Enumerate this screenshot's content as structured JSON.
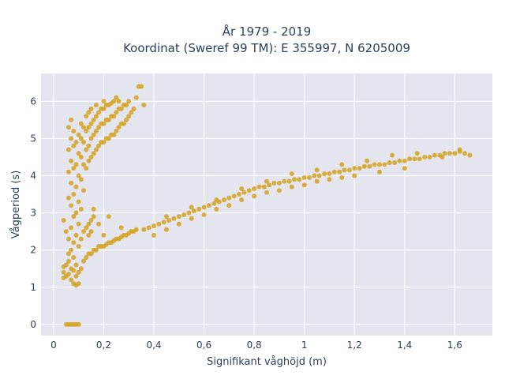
{
  "chart_data": {
    "type": "scatter",
    "title": [
      "År 1979 - 2019",
      "Koordinat (Sweref 99 TM): E 355997, N 6205009"
    ],
    "xlabel": "Signifikant våghöjd (m)",
    "ylabel": "Vågperiod (s)",
    "xlim": [
      -0.05,
      1.75
    ],
    "ylim": [
      -0.3,
      6.75
    ],
    "x_ticks": [
      0,
      0.2,
      0.4,
      0.6,
      0.8,
      1,
      1.2,
      1.4,
      1.6
    ],
    "x_tick_labels": [
      "0",
      "0,2",
      "0,4",
      "0,6",
      "0,8",
      "1",
      "1,2",
      "1,4",
      "1,6"
    ],
    "y_ticks": [
      0,
      1,
      2,
      3,
      4,
      5,
      6
    ],
    "y_tick_labels": [
      "0",
      "1",
      "2",
      "3",
      "4",
      "5",
      "6"
    ],
    "grid": true,
    "marker_color": "#d4a220",
    "plot_background": "#e5e5ef",
    "series": [
      {
        "points": [
          [
            0.05,
            0.0
          ],
          [
            0.06,
            0.0
          ],
          [
            0.07,
            0.0
          ],
          [
            0.08,
            0.0
          ],
          [
            0.09,
            0.0
          ],
          [
            0.1,
            0.0
          ],
          [
            0.04,
            1.25
          ],
          [
            0.04,
            1.4
          ],
          [
            0.04,
            1.55
          ],
          [
            0.05,
            1.3
          ],
          [
            0.05,
            1.6
          ],
          [
            0.06,
            1.35
          ],
          [
            0.06,
            1.7
          ],
          [
            0.07,
            1.2
          ],
          [
            0.07,
            1.5
          ],
          [
            0.08,
            1.1
          ],
          [
            0.08,
            1.45
          ],
          [
            0.09,
            1.05
          ],
          [
            0.09,
            1.3
          ],
          [
            0.1,
            1.1
          ],
          [
            0.04,
            2.8
          ],
          [
            0.05,
            2.5
          ],
          [
            0.06,
            1.9
          ],
          [
            0.06,
            2.3
          ],
          [
            0.06,
            3.4
          ],
          [
            0.06,
            4.1
          ],
          [
            0.06,
            4.7
          ],
          [
            0.06,
            5.3
          ],
          [
            0.07,
            2.0
          ],
          [
            0.07,
            2.6
          ],
          [
            0.07,
            3.2
          ],
          [
            0.07,
            3.8
          ],
          [
            0.07,
            4.4
          ],
          [
            0.07,
            5.0
          ],
          [
            0.07,
            5.5
          ],
          [
            0.08,
            1.8
          ],
          [
            0.08,
            2.2
          ],
          [
            0.08,
            2.9
          ],
          [
            0.08,
            3.5
          ],
          [
            0.08,
            4.2
          ],
          [
            0.08,
            4.8
          ],
          [
            0.08,
            5.2
          ],
          [
            0.09,
            1.6
          ],
          [
            0.09,
            2.4
          ],
          [
            0.09,
            3.0
          ],
          [
            0.09,
            3.7
          ],
          [
            0.09,
            4.3
          ],
          [
            0.09,
            4.9
          ],
          [
            0.1,
            1.4
          ],
          [
            0.1,
            2.1
          ],
          [
            0.1,
            2.7
          ],
          [
            0.1,
            3.3
          ],
          [
            0.1,
            4.0
          ],
          [
            0.1,
            4.6
          ],
          [
            0.1,
            5.1
          ],
          [
            0.11,
            1.5
          ],
          [
            0.11,
            2.3
          ],
          [
            0.11,
            3.1
          ],
          [
            0.11,
            3.9
          ],
          [
            0.11,
            4.5
          ],
          [
            0.11,
            5.0
          ],
          [
            0.11,
            5.4
          ],
          [
            0.12,
            1.7
          ],
          [
            0.12,
            2.5
          ],
          [
            0.12,
            3.6
          ],
          [
            0.12,
            4.3
          ],
          [
            0.12,
            4.9
          ],
          [
            0.12,
            5.3
          ],
          [
            0.13,
            1.8
          ],
          [
            0.13,
            2.6
          ],
          [
            0.13,
            4.2
          ],
          [
            0.13,
            4.7
          ],
          [
            0.13,
            5.2
          ],
          [
            0.13,
            5.6
          ],
          [
            0.14,
            1.9
          ],
          [
            0.14,
            2.7
          ],
          [
            0.14,
            4.4
          ],
          [
            0.14,
            4.8
          ],
          [
            0.14,
            5.3
          ],
          [
            0.14,
            5.7
          ],
          [
            0.15,
            1.9
          ],
          [
            0.15,
            2.8
          ],
          [
            0.15,
            4.5
          ],
          [
            0.15,
            5.0
          ],
          [
            0.15,
            5.4
          ],
          [
            0.15,
            5.8
          ],
          [
            0.16,
            2.0
          ],
          [
            0.16,
            3.1
          ],
          [
            0.16,
            4.6
          ],
          [
            0.16,
            5.1
          ],
          [
            0.16,
            5.5
          ],
          [
            0.17,
            2.0
          ],
          [
            0.17,
            4.7
          ],
          [
            0.17,
            5.2
          ],
          [
            0.17,
            5.6
          ],
          [
            0.17,
            5.9
          ],
          [
            0.18,
            2.1
          ],
          [
            0.18,
            4.8
          ],
          [
            0.18,
            5.3
          ],
          [
            0.18,
            5.7
          ],
          [
            0.19,
            2.1
          ],
          [
            0.19,
            4.9
          ],
          [
            0.19,
            5.4
          ],
          [
            0.19,
            5.8
          ],
          [
            0.2,
            2.1
          ],
          [
            0.2,
            4.9
          ],
          [
            0.2,
            5.4
          ],
          [
            0.2,
            5.8
          ],
          [
            0.2,
            6.0
          ],
          [
            0.21,
            2.15
          ],
          [
            0.21,
            5.0
          ],
          [
            0.21,
            5.5
          ],
          [
            0.21,
            5.9
          ],
          [
            0.22,
            2.2
          ],
          [
            0.22,
            5.0
          ],
          [
            0.22,
            5.5
          ],
          [
            0.22,
            5.9
          ],
          [
            0.23,
            2.2
          ],
          [
            0.23,
            5.1
          ],
          [
            0.23,
            5.6
          ],
          [
            0.23,
            5.95
          ],
          [
            0.24,
            2.25
          ],
          [
            0.24,
            5.1
          ],
          [
            0.24,
            5.6
          ],
          [
            0.24,
            6.0
          ],
          [
            0.25,
            2.3
          ],
          [
            0.25,
            5.2
          ],
          [
            0.25,
            5.7
          ],
          [
            0.25,
            6.1
          ],
          [
            0.26,
            2.3
          ],
          [
            0.26,
            5.3
          ],
          [
            0.26,
            5.8
          ],
          [
            0.26,
            6.0
          ],
          [
            0.27,
            2.35
          ],
          [
            0.27,
            5.4
          ],
          [
            0.27,
            5.8
          ],
          [
            0.28,
            2.4
          ],
          [
            0.28,
            5.4
          ],
          [
            0.28,
            5.9
          ],
          [
            0.29,
            2.4
          ],
          [
            0.29,
            5.5
          ],
          [
            0.29,
            5.9
          ],
          [
            0.3,
            2.45
          ],
          [
            0.3,
            5.6
          ],
          [
            0.3,
            6.0
          ],
          [
            0.31,
            2.5
          ],
          [
            0.31,
            5.7
          ],
          [
            0.32,
            2.5
          ],
          [
            0.32,
            5.8
          ],
          [
            0.33,
            2.55
          ],
          [
            0.33,
            6.1
          ],
          [
            0.34,
            6.4
          ],
          [
            0.35,
            6.4
          ],
          [
            0.36,
            5.9
          ],
          [
            0.14,
            2.4
          ],
          [
            0.15,
            2.5
          ],
          [
            0.16,
            2.9
          ],
          [
            0.18,
            2.7
          ],
          [
            0.2,
            2.4
          ],
          [
            0.22,
            2.9
          ],
          [
            0.27,
            2.6
          ],
          [
            0.36,
            2.55
          ],
          [
            0.38,
            2.6
          ],
          [
            0.4,
            2.65
          ],
          [
            0.42,
            2.7
          ],
          [
            0.44,
            2.75
          ],
          [
            0.46,
            2.8
          ],
          [
            0.48,
            2.85
          ],
          [
            0.5,
            2.9
          ],
          [
            0.52,
            2.95
          ],
          [
            0.54,
            3.0
          ],
          [
            0.56,
            3.05
          ],
          [
            0.58,
            3.1
          ],
          [
            0.6,
            3.15
          ],
          [
            0.62,
            3.2
          ],
          [
            0.64,
            3.25
          ],
          [
            0.66,
            3.3
          ],
          [
            0.68,
            3.35
          ],
          [
            0.7,
            3.4
          ],
          [
            0.72,
            3.45
          ],
          [
            0.74,
            3.5
          ],
          [
            0.76,
            3.55
          ],
          [
            0.78,
            3.6
          ],
          [
            0.8,
            3.65
          ],
          [
            0.82,
            3.7
          ],
          [
            0.84,
            3.7
          ],
          [
            0.86,
            3.75
          ],
          [
            0.88,
            3.8
          ],
          [
            0.9,
            3.8
          ],
          [
            0.92,
            3.85
          ],
          [
            0.94,
            3.85
          ],
          [
            0.96,
            3.9
          ],
          [
            0.98,
            3.9
          ],
          [
            1.0,
            3.95
          ],
          [
            1.02,
            3.95
          ],
          [
            1.04,
            4.0
          ],
          [
            1.06,
            4.0
          ],
          [
            1.08,
            4.05
          ],
          [
            1.1,
            4.05
          ],
          [
            1.12,
            4.1
          ],
          [
            1.14,
            4.1
          ],
          [
            1.16,
            4.15
          ],
          [
            1.18,
            4.15
          ],
          [
            1.2,
            4.2
          ],
          [
            1.22,
            4.2
          ],
          [
            1.24,
            4.25
          ],
          [
            1.26,
            4.25
          ],
          [
            1.28,
            4.3
          ],
          [
            1.3,
            4.3
          ],
          [
            1.32,
            4.3
          ],
          [
            1.34,
            4.35
          ],
          [
            1.36,
            4.35
          ],
          [
            1.38,
            4.4
          ],
          [
            1.4,
            4.4
          ],
          [
            1.42,
            4.45
          ],
          [
            1.44,
            4.45
          ],
          [
            1.46,
            4.45
          ],
          [
            1.48,
            4.5
          ],
          [
            1.5,
            4.5
          ],
          [
            1.52,
            4.55
          ],
          [
            1.54,
            4.55
          ],
          [
            1.56,
            4.6
          ],
          [
            1.58,
            4.6
          ],
          [
            1.6,
            4.6
          ],
          [
            1.62,
            4.65
          ],
          [
            1.64,
            4.6
          ],
          [
            1.66,
            4.55
          ],
          [
            0.4,
            2.4
          ],
          [
            0.45,
            2.55
          ],
          [
            0.5,
            2.7
          ],
          [
            0.55,
            2.85
          ],
          [
            0.6,
            2.95
          ],
          [
            0.65,
            3.1
          ],
          [
            0.7,
            3.2
          ],
          [
            0.75,
            3.35
          ],
          [
            0.8,
            3.45
          ],
          [
            0.85,
            3.55
          ],
          [
            0.9,
            3.6
          ],
          [
            0.95,
            3.7
          ],
          [
            1.0,
            3.75
          ],
          [
            1.05,
            3.85
          ],
          [
            1.1,
            3.9
          ],
          [
            1.15,
            3.95
          ],
          [
            1.2,
            4.0
          ],
          [
            1.3,
            4.1
          ],
          [
            1.4,
            4.2
          ],
          [
            0.45,
            2.9
          ],
          [
            0.55,
            3.15
          ],
          [
            0.65,
            3.35
          ],
          [
            0.75,
            3.65
          ],
          [
            0.85,
            3.85
          ],
          [
            0.95,
            4.05
          ],
          [
            1.05,
            4.15
          ],
          [
            1.15,
            4.3
          ],
          [
            1.25,
            4.4
          ],
          [
            1.35,
            4.55
          ],
          [
            1.45,
            4.6
          ],
          [
            1.55,
            4.5
          ],
          [
            1.62,
            4.7
          ]
        ]
      }
    ]
  }
}
